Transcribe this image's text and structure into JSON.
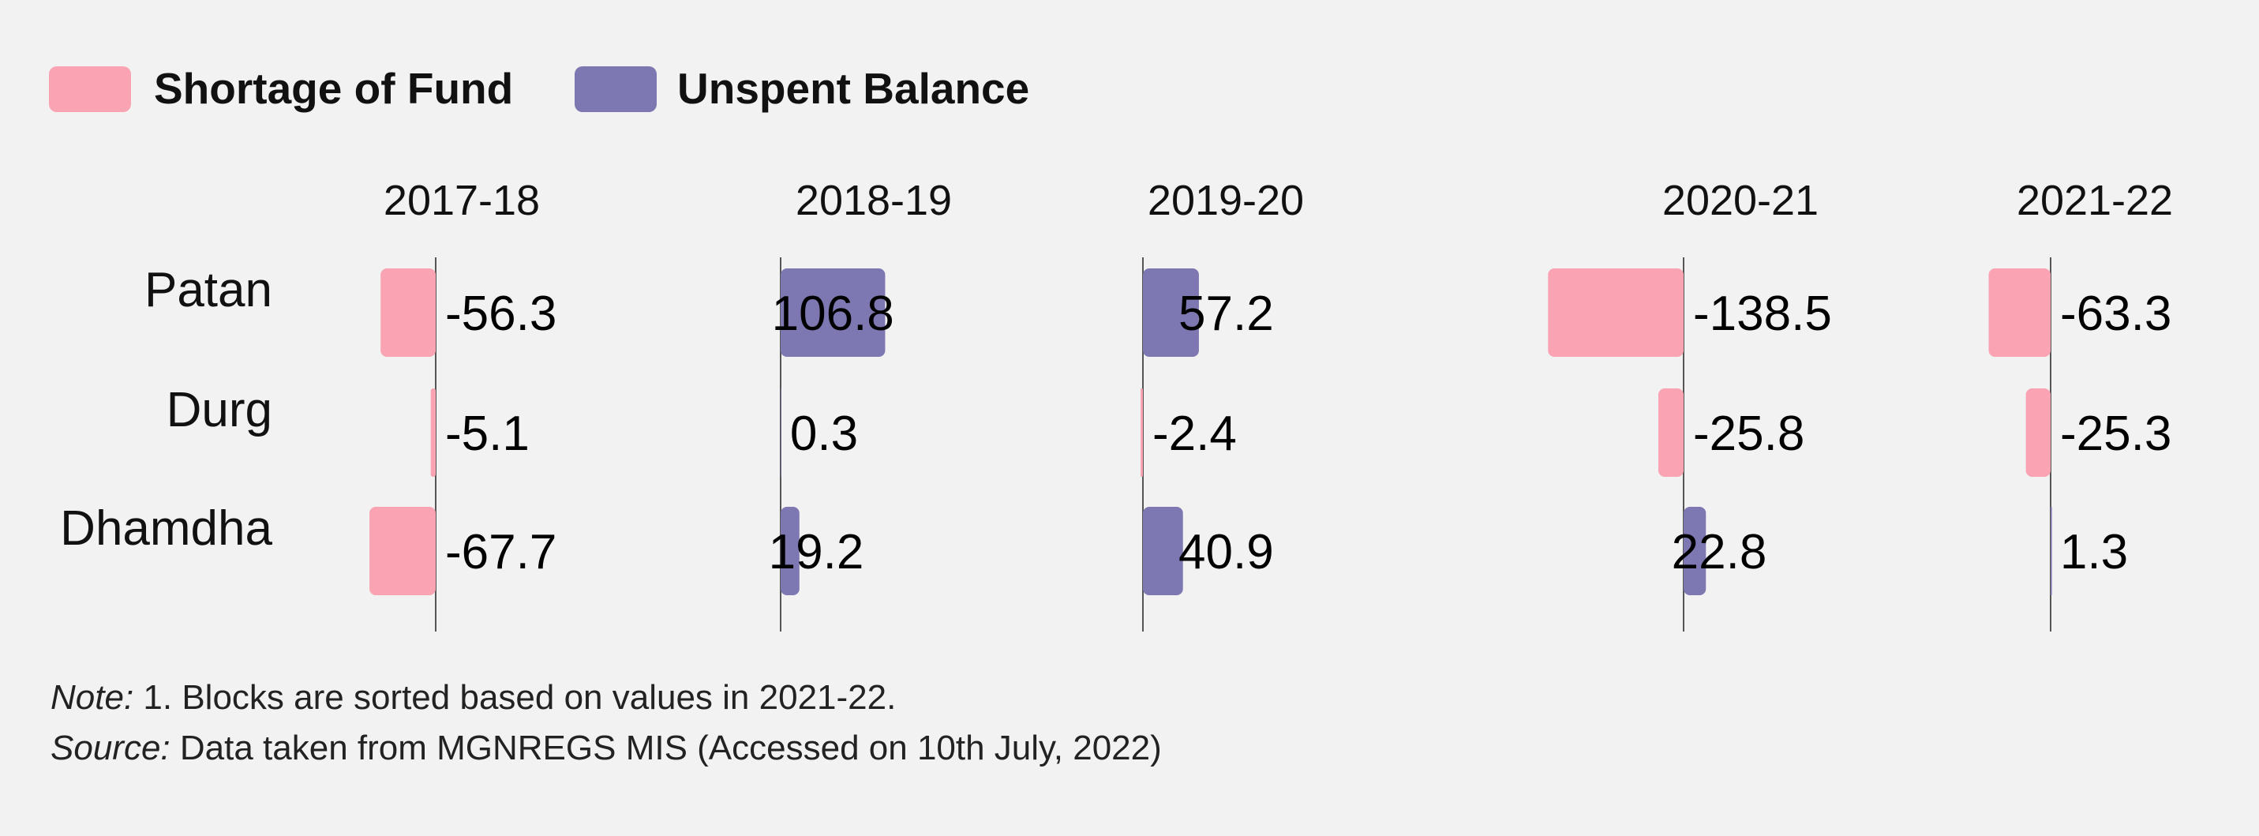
{
  "colors": {
    "shortage": "#f9a3b3",
    "unspent": "#7e78b2",
    "background": "#f2f2f2",
    "axis": "#555555"
  },
  "legend": [
    {
      "key": "shortage",
      "label": "Shortage of Fund"
    },
    {
      "key": "unspent",
      "label": "Unspent Balance"
    }
  ],
  "chart_data": {
    "type": "bar",
    "orientation": "horizontal",
    "layout": "small-multiples",
    "years": [
      "2017-18",
      "2018-19",
      "2019-20",
      "2020-21",
      "2021-22"
    ],
    "blocks": [
      "Patan",
      "Durg",
      "Dhamdha"
    ],
    "values": [
      [
        -56.3,
        106.8,
        57.2,
        -138.5,
        -63.3
      ],
      [
        -5.1,
        0.3,
        -2.4,
        -25.8,
        -25.3
      ],
      [
        -67.7,
        19.2,
        40.9,
        22.8,
        1.3
      ]
    ],
    "value_labels": [
      [
        "-56.3",
        "106.8",
        "57.2",
        "-138.5",
        "-63.3"
      ],
      [
        "-5.1",
        "0.3",
        "-2.4",
        "-25.8",
        "-25.3"
      ],
      [
        "-67.7",
        "19.2",
        "40.9",
        "22.8",
        "1.3"
      ]
    ],
    "series_rule": "negative values = Shortage of Fund, positive values = Unspent Balance",
    "sort_note": "Blocks are sorted based on values in 2021-22"
  },
  "notes": {
    "note_prefix": "Note:",
    "note_text": " 1. Blocks are sorted based on values in 2021-22.",
    "source_prefix": "Source:",
    "source_text": " Data taken from MGNREGS MIS (Accessed on 10th July, 2022)"
  }
}
